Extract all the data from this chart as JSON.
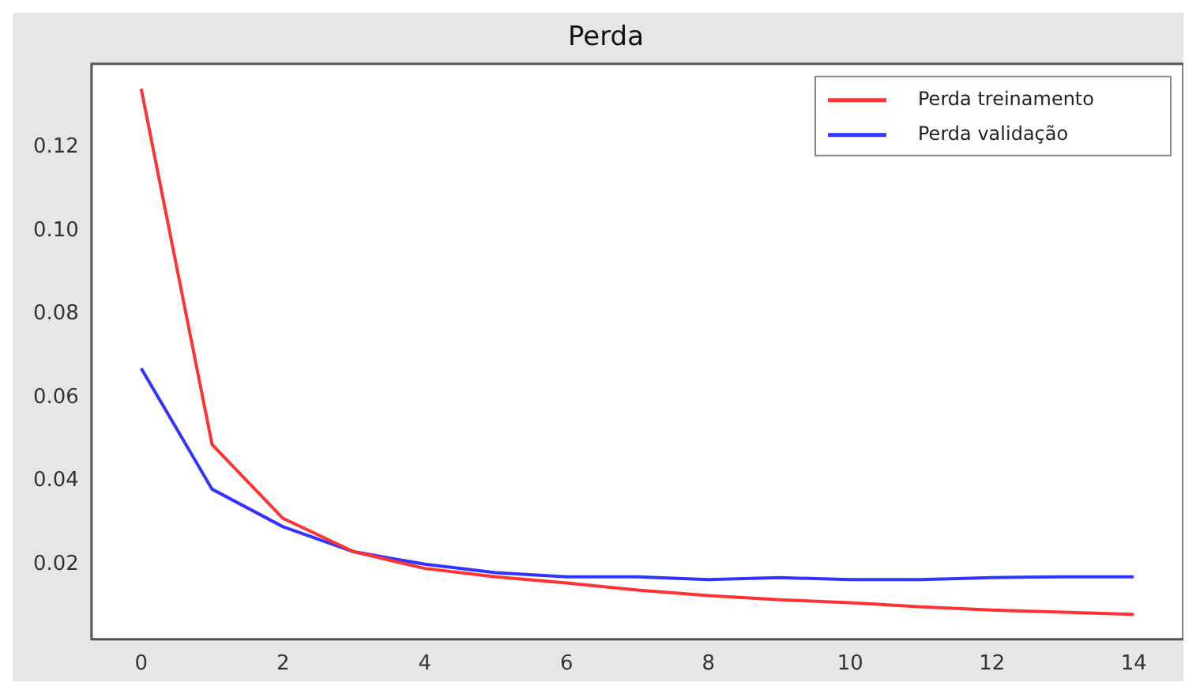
{
  "chart_data": {
    "type": "line",
    "title": "Perda",
    "x": [
      0,
      1,
      2,
      3,
      4,
      5,
      6,
      7,
      8,
      9,
      10,
      11,
      12,
      13,
      14
    ],
    "series": [
      {
        "name": "Perda treinamento",
        "color": "#ff3333",
        "values": [
          0.134,
          0.0487,
          0.031,
          0.023,
          0.019,
          0.017,
          0.0155,
          0.0138,
          0.0125,
          0.0115,
          0.0108,
          0.0098,
          0.009,
          0.0085,
          0.008
        ]
      },
      {
        "name": "Perda validação",
        "color": "#3333ff",
        "values": [
          0.067,
          0.038,
          0.029,
          0.023,
          0.02,
          0.018,
          0.017,
          0.017,
          0.0163,
          0.0168,
          0.0163,
          0.0163,
          0.0168,
          0.017,
          0.017
        ]
      }
    ],
    "xlim": [
      -0.7,
      14.7
    ],
    "xticks": [
      0,
      2,
      4,
      6,
      8,
      10,
      12,
      14
    ],
    "ylim": [
      0.002,
      0.14
    ],
    "yticks": [
      0.02,
      0.04,
      0.06,
      0.08,
      {
        "value": 0.1,
        "label": "0.10"
      },
      0.12
    ],
    "grid": false,
    "legend": "top right",
    "marker": "none",
    "line_style": "solid"
  }
}
